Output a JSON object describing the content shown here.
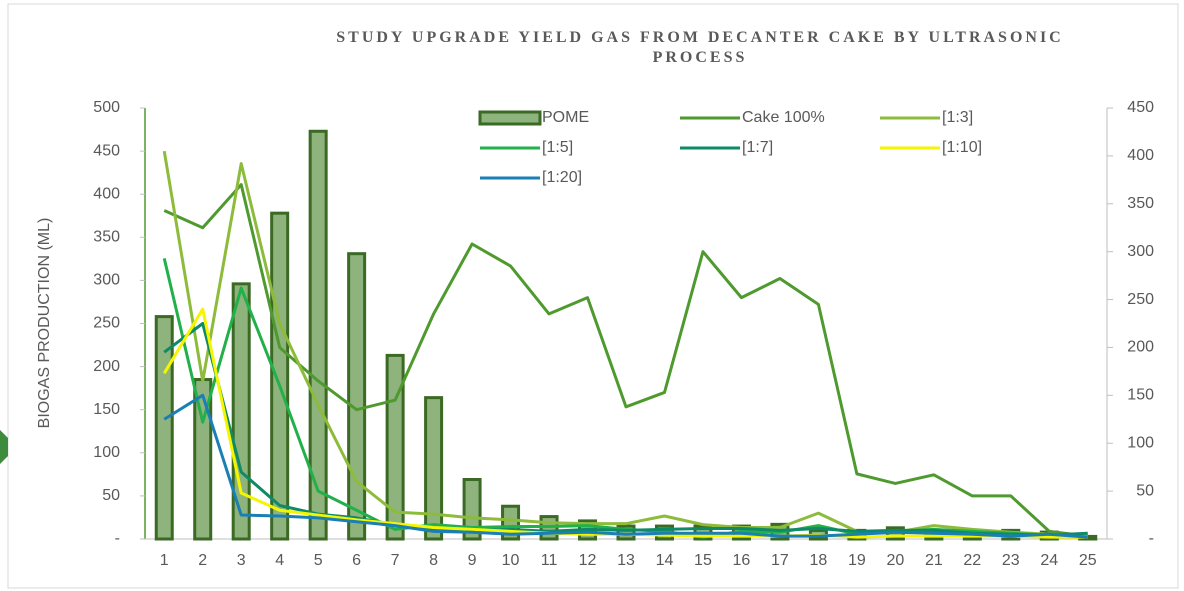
{
  "chart_data": {
    "type": "bar-line",
    "title": "STUDY UPGRADE YIELD GAS FROM DECANTER CAKE BY ULTRASONIC PROCESS",
    "ylabel": "BIOGAS PRODUCTION (ML)",
    "categories": [
      "1",
      "2",
      "3",
      "4",
      "5",
      "6",
      "7",
      "8",
      "9",
      "10",
      "11",
      "12",
      "13",
      "14",
      "15",
      "16",
      "17",
      "18",
      "19",
      "20",
      "21",
      "22",
      "23",
      "24",
      "25"
    ],
    "ylim": [
      0,
      500
    ],
    "yticks": [
      {
        "value": 0,
        "label": "-"
      },
      50,
      100,
      150,
      200,
      250,
      300,
      350,
      400,
      450,
      500
    ],
    "y2lim": [
      0,
      450
    ],
    "y2ticks": [
      {
        "value": 0,
        "label": "-"
      },
      50,
      100,
      150,
      200,
      250,
      300,
      350,
      400,
      450
    ],
    "series": [
      {
        "name": "POME",
        "type": "bar",
        "color": "#8fb37c",
        "edge": "#3a6a23",
        "axis": "y",
        "values": [
          258,
          185,
          296,
          378,
          473,
          331,
          213,
          164,
          69,
          38,
          26,
          21,
          15,
          15,
          15,
          15,
          17,
          10,
          10,
          13,
          10,
          8,
          10,
          8,
          3
        ]
      },
      {
        "name": "Cake 100%",
        "type": "line",
        "color": "#4e9a2e",
        "axis": "y2",
        "values": [
          343,
          325,
          370,
          200,
          165,
          135,
          145,
          235,
          308,
          285,
          235,
          252,
          138,
          153,
          300,
          252,
          272,
          245,
          68,
          58,
          67,
          45,
          45,
          8,
          3
        ]
      },
      {
        "name": "[1:3]",
        "type": "line",
        "color": "#8dbb3a",
        "axis": "y2",
        "values": [
          405,
          165,
          392,
          225,
          140,
          60,
          28,
          26,
          22,
          20,
          17,
          16,
          16,
          24,
          15,
          12,
          12,
          27,
          8,
          7,
          14,
          10,
          7,
          5,
          3
        ]
      },
      {
        "name": "[1:5]",
        "type": "line",
        "color": "#22b04b",
        "axis": "y2",
        "values": [
          293,
          122,
          262,
          160,
          50,
          30,
          10,
          15,
          12,
          13,
          13,
          14,
          10,
          8,
          2,
          8,
          7,
          14,
          5,
          8,
          10,
          8,
          6,
          4,
          2
        ]
      },
      {
        "name": "[1:7]",
        "type": "line",
        "color": "#0e8a66",
        "axis": "y2",
        "values": [
          195,
          225,
          70,
          35,
          26,
          22,
          15,
          10,
          9,
          10,
          8,
          10,
          9,
          10,
          11,
          11,
          9,
          11,
          8,
          9,
          9,
          6,
          5,
          4,
          6
        ]
      },
      {
        "name": "[1:10]",
        "type": "line",
        "color": "#f5f500",
        "axis": "y2",
        "values": [
          173,
          240,
          48,
          30,
          25,
          20,
          16,
          12,
          10,
          8,
          6,
          5,
          5,
          4,
          3,
          3,
          3,
          4,
          2,
          3,
          3,
          3,
          3,
          2,
          2
        ]
      },
      {
        "name": "[1:20]",
        "type": "line",
        "color": "#1a7fb5",
        "axis": "y2",
        "values": [
          125,
          150,
          25,
          24,
          22,
          18,
          14,
          8,
          7,
          5,
          6,
          7,
          5,
          6,
          6,
          6,
          3,
          3,
          5,
          7,
          6,
          5,
          3,
          5,
          2
        ]
      }
    ]
  }
}
